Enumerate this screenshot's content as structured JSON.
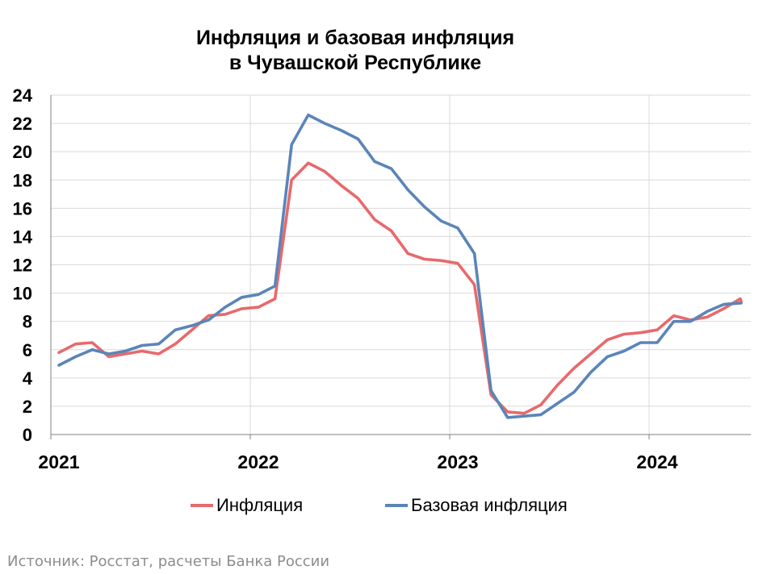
{
  "chart_data": {
    "type": "line",
    "title_line1": "Инфляция и базовая инфляция",
    "title_line2": "в Чувашской Республике",
    "xlabel": "",
    "ylabel": "",
    "ylim": [
      0,
      24
    ],
    "yticks": [
      "0",
      "2",
      "4",
      "6",
      "8",
      "10",
      "12",
      "14",
      "16",
      "18",
      "20",
      "22",
      "24"
    ],
    "xticks": [
      "2021",
      "2022",
      "2023",
      "2024"
    ],
    "grid": true,
    "legend_position": "bottom",
    "x_start": "2021-01",
    "x_end": "2024-07",
    "series": [
      {
        "name": "Инфляция",
        "color": "#e8696b",
        "values": [
          5.8,
          6.4,
          6.5,
          5.5,
          5.7,
          5.9,
          5.7,
          6.4,
          7.4,
          8.4,
          8.5,
          8.9,
          9.0,
          9.6,
          18.0,
          19.2,
          18.6,
          17.6,
          16.7,
          15.2,
          14.4,
          12.8,
          12.4,
          12.3,
          12.1,
          10.6,
          2.8,
          1.6,
          1.5,
          2.1,
          3.5,
          4.7,
          5.7,
          6.7,
          7.1,
          7.2,
          7.4,
          8.4,
          8.1,
          8.3,
          8.9,
          9.6
        ],
        "tail": 9.4
      },
      {
        "name": "Базовая инфляция",
        "color": "#5a85b8",
        "values": [
          4.9,
          5.5,
          6.0,
          5.7,
          5.9,
          6.3,
          6.4,
          7.4,
          7.7,
          8.1,
          9.0,
          9.7,
          9.9,
          10.5,
          20.5,
          22.6,
          22.0,
          21.5,
          20.9,
          19.3,
          18.8,
          17.3,
          16.1,
          15.1,
          14.6,
          12.8,
          3.1,
          1.2,
          1.3,
          1.4,
          2.2,
          3.0,
          4.4,
          5.5,
          5.9,
          6.5,
          6.5,
          8.0,
          8.0,
          8.7,
          9.2,
          9.3
        ],
        "tail": 9.3
      }
    ]
  },
  "source_text": "Источник: Росстат, расчеты Банка России"
}
